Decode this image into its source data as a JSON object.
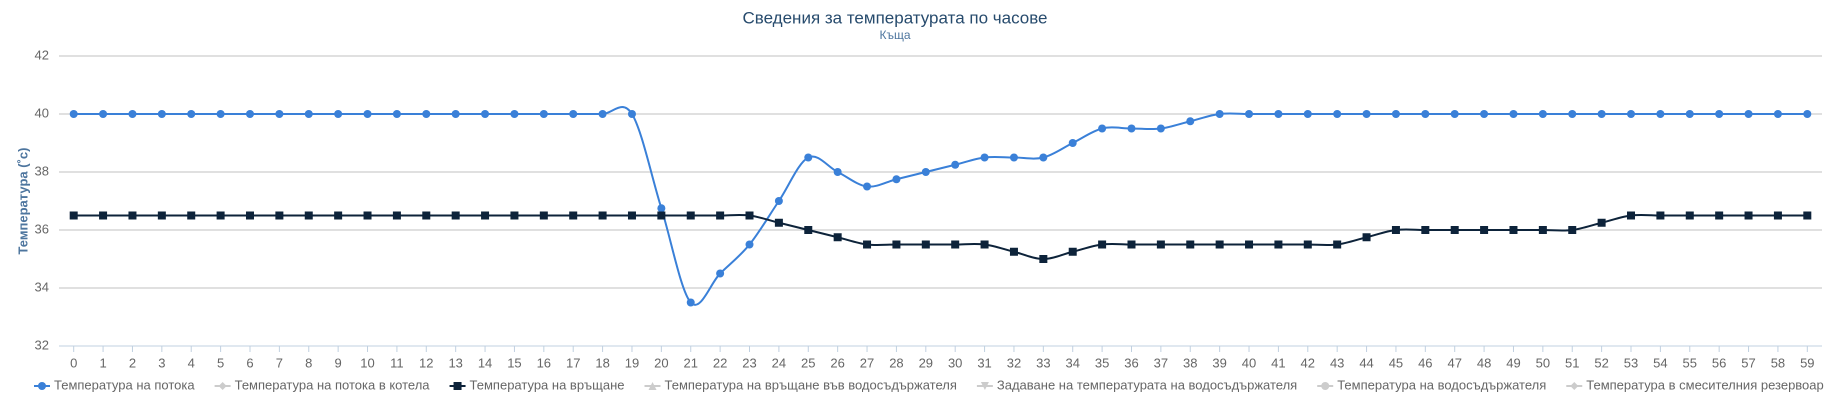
{
  "chart_data": {
    "type": "line",
    "title": "Сведения за температурата по часове",
    "subtitle": "Къща",
    "y_label": "Температура (˚c)",
    "x": [
      0,
      1,
      2,
      3,
      4,
      5,
      6,
      7,
      8,
      9,
      10,
      11,
      12,
      13,
      14,
      15,
      16,
      17,
      18,
      19,
      20,
      21,
      22,
      23,
      24,
      25,
      26,
      27,
      28,
      29,
      30,
      31,
      32,
      33,
      34,
      35,
      36,
      37,
      38,
      39,
      40,
      41,
      42,
      43,
      44,
      45,
      46,
      47,
      48,
      49,
      50,
      51,
      52,
      53,
      54,
      55,
      56,
      57,
      58,
      59
    ],
    "xlim": [
      -0.5,
      59.5
    ],
    "ylim": [
      32,
      42
    ],
    "yticks": [
      32,
      34,
      36,
      38,
      40,
      42
    ],
    "grid": true,
    "legend": "bottom",
    "series": [
      {
        "name": "Температура на потока",
        "color": "#3a80d8",
        "marker": "circle",
        "visible": true,
        "values": [
          40,
          40,
          40,
          40,
          40,
          40,
          40,
          40,
          40,
          40,
          40,
          40,
          40,
          40,
          40,
          40,
          40,
          40,
          40,
          40,
          36.75,
          33.5,
          34.5,
          35.5,
          37,
          38.5,
          38,
          37.5,
          37.75,
          38,
          38.25,
          38.5,
          38.5,
          38.5,
          39,
          39.5,
          39.5,
          39.5,
          39.75,
          40,
          40,
          40,
          40,
          40,
          40,
          40,
          40,
          40,
          40,
          40,
          40,
          40,
          40,
          40,
          40,
          40,
          40,
          40,
          40,
          40
        ]
      },
      {
        "name": "Температура на потока в котела",
        "color": "#cccccc",
        "marker": "diamond",
        "visible": false
      },
      {
        "name": "Температура на връщане",
        "color": "#0d233a",
        "marker": "square",
        "visible": true,
        "values": [
          36.5,
          36.5,
          36.5,
          36.5,
          36.5,
          36.5,
          36.5,
          36.5,
          36.5,
          36.5,
          36.5,
          36.5,
          36.5,
          36.5,
          36.5,
          36.5,
          36.5,
          36.5,
          36.5,
          36.5,
          36.5,
          36.5,
          36.5,
          36.5,
          36.25,
          36,
          35.75,
          35.5,
          35.5,
          35.5,
          35.5,
          35.5,
          35.25,
          35,
          35.25,
          35.5,
          35.5,
          35.5,
          35.5,
          35.5,
          35.5,
          35.5,
          35.5,
          35.5,
          35.75,
          36,
          36,
          36,
          36,
          36,
          36,
          36,
          36.25,
          36.5,
          36.5,
          36.5,
          36.5,
          36.5,
          36.5,
          36.5
        ]
      },
      {
        "name": "Температура на връщане във водосъдържателя",
        "color": "#cccccc",
        "marker": "triangle",
        "visible": false
      },
      {
        "name": "Задаване на температурата на водосъдържателя",
        "color": "#cccccc",
        "marker": "triangle-down",
        "visible": false
      },
      {
        "name": "Температура на водосъдържателя",
        "color": "#cccccc",
        "marker": "circle",
        "visible": false
      },
      {
        "name": "Температура в смесителния резервоар",
        "color": "#cccccc",
        "marker": "diamond",
        "visible": false
      }
    ]
  }
}
